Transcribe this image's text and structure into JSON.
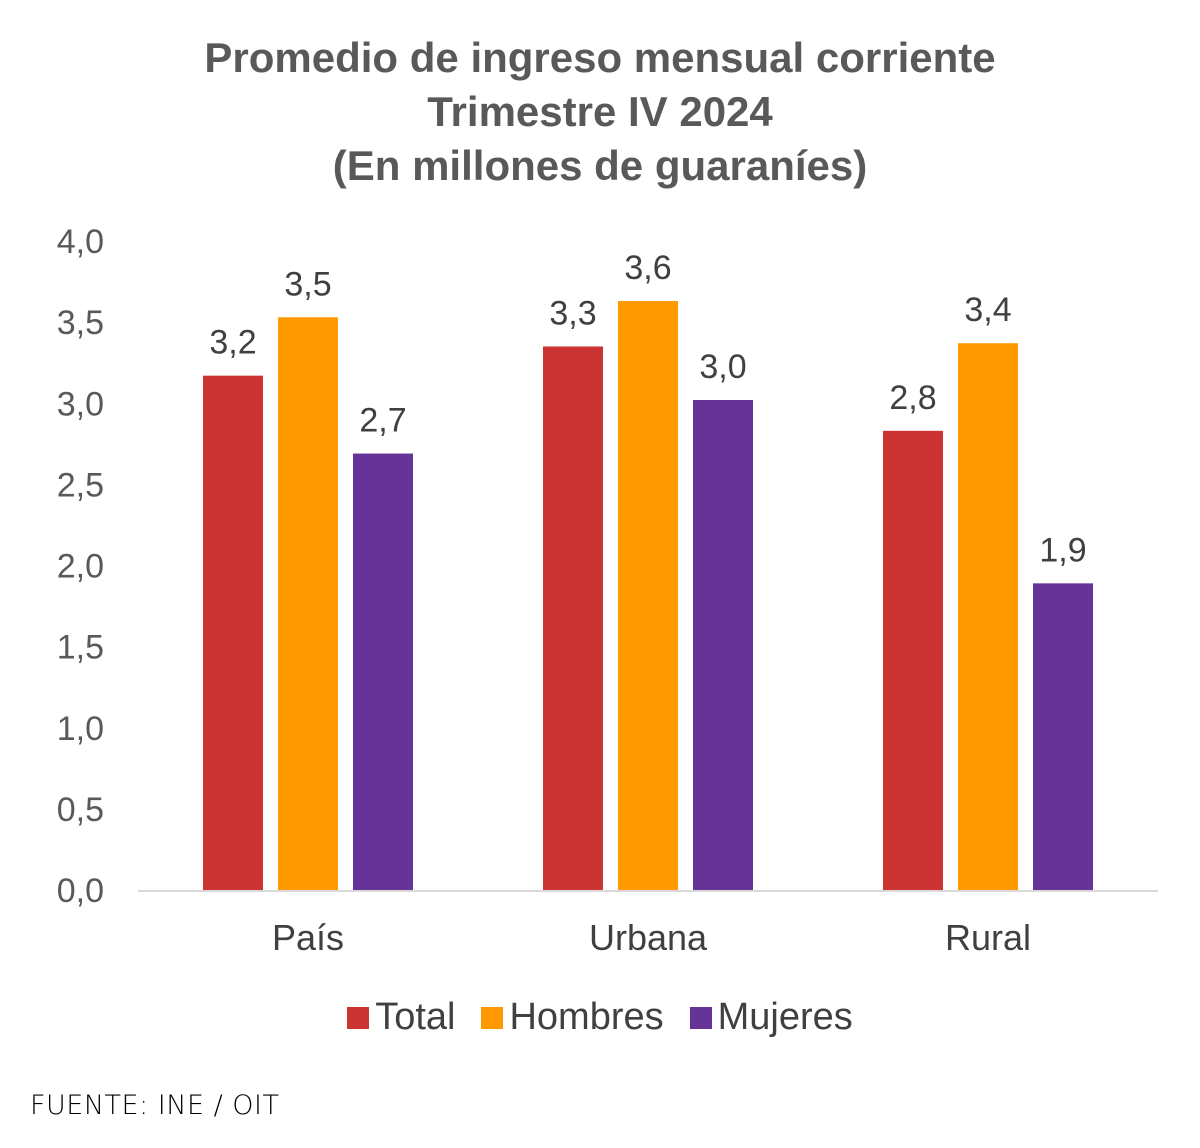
{
  "chart_data": {
    "type": "bar",
    "title": [
      "Promedio de ingreso mensual corriente",
      "Trimestre IV 2024",
      "(En millones de guaraníes)"
    ],
    "categories": [
      "País",
      "Urbana",
      "Rural"
    ],
    "series": [
      {
        "name": "Total",
        "color": "#cc3333",
        "values": [
          3.2,
          3.3,
          2.8
        ],
        "labels": [
          "3,2",
          "3,3",
          "2,8"
        ],
        "heights": [
          3.17,
          3.35,
          2.83
        ]
      },
      {
        "name": "Hombres",
        "color": "#ff9900",
        "values": [
          3.5,
          3.6,
          3.4
        ],
        "labels": [
          "3,5",
          "3,6",
          "3,4"
        ],
        "heights": [
          3.53,
          3.63,
          3.37
        ]
      },
      {
        "name": "Mujeres",
        "color": "#663399",
        "values": [
          2.7,
          3.0,
          1.9
        ],
        "labels": [
          "2,7",
          "3,0",
          "1,9"
        ],
        "heights": [
          2.69,
          3.02,
          1.89
        ]
      }
    ],
    "yticks": [
      "0,0",
      "0,5",
      "1,0",
      "1,5",
      "2,0",
      "2,5",
      "3,0",
      "3,5",
      "4,0"
    ],
    "ylim": [
      0,
      4
    ],
    "xlabel": "",
    "ylabel": "",
    "legend": "bottom",
    "grid": false
  },
  "source": "FUENTE: INE / OIT"
}
